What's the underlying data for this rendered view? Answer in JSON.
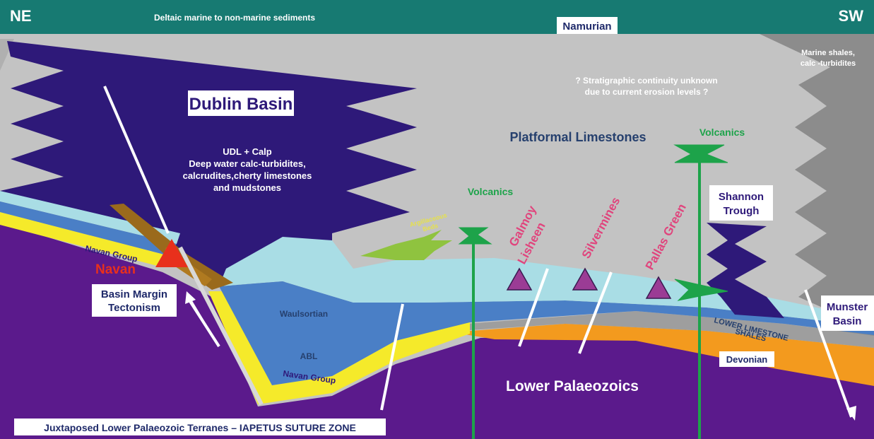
{
  "header": {
    "left": "NE",
    "subtitle": "Deltaic marine to non-marine sediments",
    "period": "Namurian",
    "right": "SW"
  },
  "labels": {
    "marine_shales": [
      "Marine shales,",
      "calc -turbidites"
    ],
    "stratigraphic": [
      "? Stratigraphic continuity unknown",
      "due to current erosion levels ?"
    ],
    "dublin_basin": "Dublin Basin",
    "udl": [
      "UDL + Calp",
      "Deep water calc-turbidites,",
      "calcrudites,cherty  limestones",
      "and mudstones"
    ],
    "platformal": "Platformal Limestones",
    "volcanics": [
      "Volcanics",
      "Volcanics"
    ],
    "shannon_trough": [
      "Shannon",
      "Trough"
    ],
    "argillaceous": [
      "Argillaceous",
      "Beds"
    ],
    "deposits": [
      "Galmoy",
      "Lisheen",
      "Silvermines",
      "Pallas Green"
    ],
    "navan_group_upper": "Navan Group",
    "navan": "Navan",
    "basin_margin": [
      "Basin Margin",
      "Tectonism"
    ],
    "waulsortian": "Waulsortian",
    "abl": "ABL",
    "navan_group_lower": "Navan  Group",
    "lower_limestone_shales": [
      "LOWER LIMESTONE",
      "SHALES"
    ],
    "munster_basin": [
      "Munster",
      "Basin"
    ],
    "devonian": "Devonian",
    "lower_palaeozoics": "Lower Palaeozoics",
    "iapetus": "Juxtaposed Lower Palaeozoic Terranes – IAPETUS SUTURE ZONE"
  }
}
